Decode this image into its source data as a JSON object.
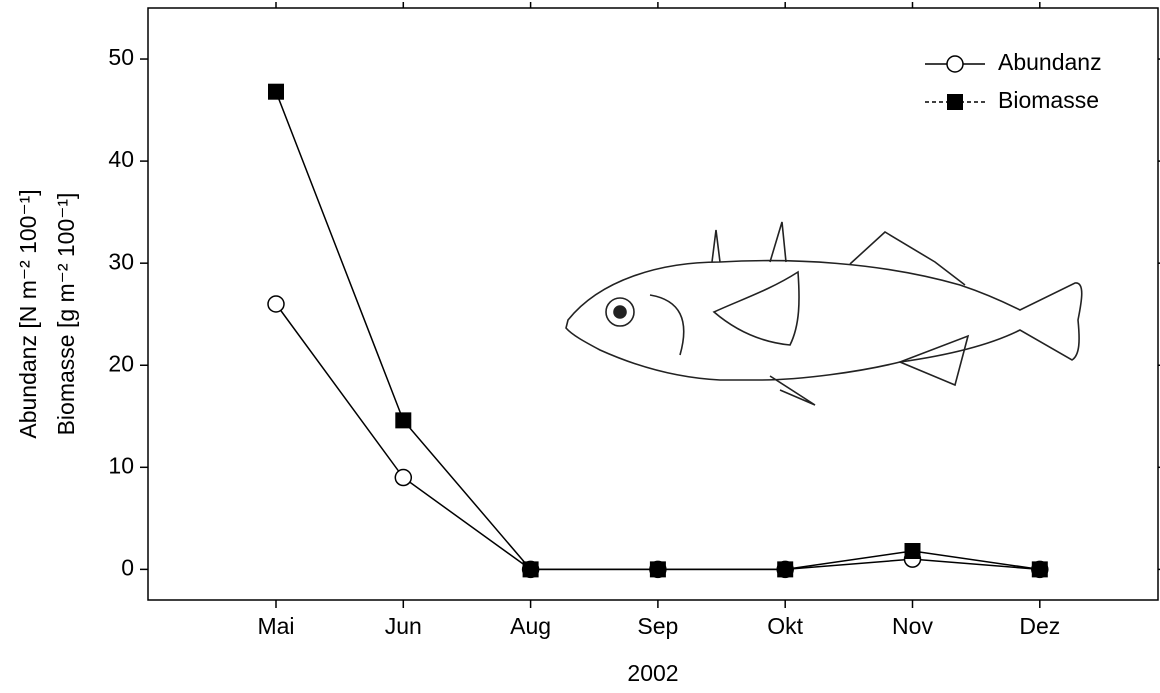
{
  "chart_data": {
    "type": "line",
    "categories": [
      "Mai",
      "Jun",
      "Aug",
      "Sep",
      "Okt",
      "Nov",
      "Dez"
    ],
    "series": [
      {
        "name": "Abundanz",
        "color": "#000000",
        "marker": "circle",
        "values": [
          26,
          9,
          0,
          0,
          0,
          1,
          0
        ]
      },
      {
        "name": "Biomasse",
        "color": "#000000",
        "marker": "square",
        "values": [
          46.8,
          14.6,
          0,
          0,
          0,
          1.8,
          0
        ]
      }
    ],
    "ylabel": [
      "Abundanz [N m⁻² 100⁻¹]",
      "Biomasse [g m⁻² 100⁻¹]"
    ],
    "xlabel": "2002",
    "ylim": [
      -3,
      55
    ],
    "yticks": [
      0,
      10,
      20,
      30,
      40,
      50
    ],
    "legend": "upper right",
    "grid": false
  }
}
